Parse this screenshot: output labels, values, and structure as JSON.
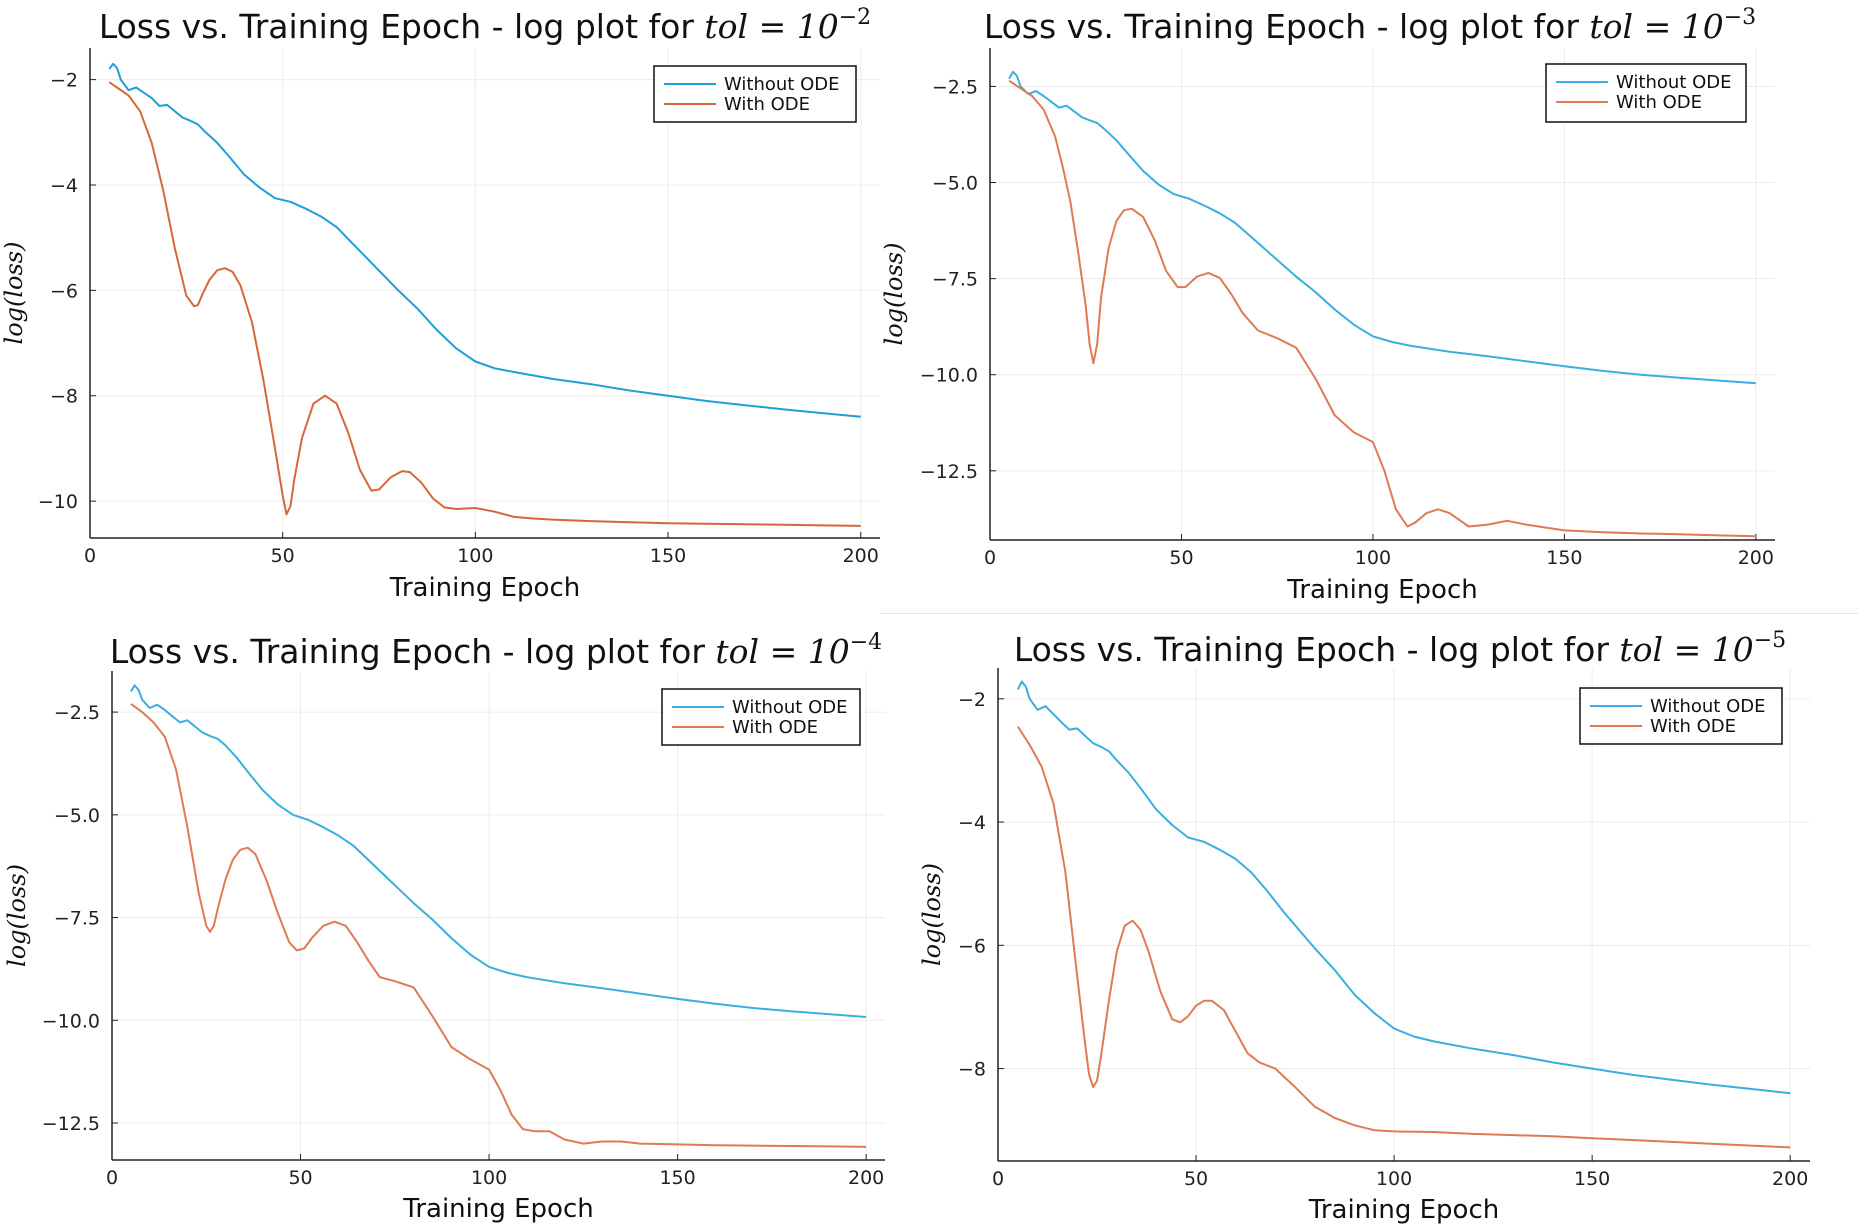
{
  "colors": {
    "without_ode": "#1f9fd8",
    "with_ode": "#d5683a",
    "grid": "#ececec",
    "axis": "#222222"
  },
  "chart_data": [
    {
      "type": "line",
      "title_prefix": "Loss vs. Training Epoch - log plot for ",
      "title_math": "tol = 10",
      "title_exponent": "−2",
      "xlabel": "Training Epoch",
      "ylabel": "log(loss)",
      "xlim": [
        0,
        205
      ],
      "ylim": [
        -10.7,
        -1.4
      ],
      "xticks": [
        0,
        50,
        100,
        150,
        200
      ],
      "xtick_labels": [
        "0",
        "50",
        "100",
        "150",
        "200"
      ],
      "yticks": [
        -2,
        -4,
        -6,
        -8,
        -10
      ],
      "ytick_labels": [
        "−2",
        "−4",
        "−6",
        "−8",
        "−10"
      ],
      "grid": true,
      "legend_position": "top-right",
      "series": [
        {
          "name": "Without ODE",
          "color": "#1f9fd8",
          "x": [
            5,
            6,
            7,
            8,
            10,
            12,
            14,
            16,
            18,
            20,
            22,
            24,
            26,
            28,
            30,
            33,
            36,
            40,
            44,
            48,
            52,
            56,
            60,
            64,
            68,
            72,
            76,
            80,
            85,
            90,
            95,
            100,
            105,
            110,
            120,
            130,
            140,
            150,
            160,
            170,
            180,
            190,
            200
          ],
          "y": [
            -1.8,
            -1.7,
            -1.78,
            -2.0,
            -2.2,
            -2.15,
            -2.25,
            -2.35,
            -2.5,
            -2.48,
            -2.6,
            -2.72,
            -2.78,
            -2.85,
            -3.0,
            -3.2,
            -3.45,
            -3.8,
            -4.05,
            -4.25,
            -4.32,
            -4.45,
            -4.6,
            -4.8,
            -5.1,
            -5.4,
            -5.7,
            -6.0,
            -6.35,
            -6.75,
            -7.1,
            -7.35,
            -7.48,
            -7.55,
            -7.68,
            -7.78,
            -7.9,
            -8.0,
            -8.1,
            -8.18,
            -8.26,
            -8.33,
            -8.4
          ]
        },
        {
          "name": "With ODE",
          "color": "#d5683a",
          "x": [
            5,
            7,
            10,
            13,
            16,
            19,
            22,
            25,
            27,
            28,
            29,
            31,
            33,
            35,
            37,
            39,
            42,
            45,
            48,
            50,
            51,
            52,
            53,
            55,
            58,
            61,
            64,
            67,
            70,
            73,
            75,
            78,
            81,
            83,
            86,
            89,
            92,
            95,
            100,
            105,
            110,
            115,
            120,
            130,
            140,
            150,
            160,
            170,
            180,
            190,
            200
          ],
          "y": [
            -2.05,
            -2.15,
            -2.3,
            -2.6,
            -3.2,
            -4.1,
            -5.2,
            -6.1,
            -6.3,
            -6.28,
            -6.1,
            -5.8,
            -5.62,
            -5.58,
            -5.65,
            -5.9,
            -6.6,
            -7.7,
            -9.0,
            -9.9,
            -10.25,
            -10.1,
            -9.6,
            -8.8,
            -8.15,
            -8.0,
            -8.15,
            -8.7,
            -9.4,
            -9.8,
            -9.78,
            -9.55,
            -9.43,
            -9.45,
            -9.65,
            -9.95,
            -10.12,
            -10.15,
            -10.13,
            -10.2,
            -10.3,
            -10.33,
            -10.35,
            -10.38,
            -10.4,
            -10.42,
            -10.43,
            -10.44,
            -10.45,
            -10.46,
            -10.47
          ]
        }
      ]
    },
    {
      "type": "line",
      "title_prefix": "Loss vs. Training Epoch - log plot for ",
      "title_math": "tol = 10",
      "title_exponent": "−3",
      "xlabel": "Training Epoch",
      "ylabel": "log(loss)",
      "xlim": [
        0,
        205
      ],
      "ylim": [
        -14.3,
        -1.5
      ],
      "xticks": [
        0,
        50,
        100,
        150,
        200
      ],
      "xtick_labels": [
        "0",
        "50",
        "100",
        "150",
        "200"
      ],
      "yticks": [
        -2.5,
        -5.0,
        -7.5,
        -10.0,
        -12.5
      ],
      "ytick_labels": [
        "−2.5",
        "−5.0",
        "−7.5",
        "−10.0",
        "−12.5"
      ],
      "grid": true,
      "legend_position": "top-right",
      "series": [
        {
          "name": "Without ODE",
          "color": "#3aaee0",
          "x": [
            5,
            6,
            7,
            8,
            10,
            12,
            14,
            16,
            18,
            20,
            22,
            24,
            26,
            28,
            30,
            33,
            36,
            40,
            44,
            48,
            52,
            56,
            60,
            64,
            68,
            72,
            76,
            80,
            85,
            90,
            95,
            100,
            105,
            110,
            120,
            130,
            140,
            150,
            160,
            170,
            180,
            190,
            200
          ],
          "y": [
            -2.3,
            -2.12,
            -2.22,
            -2.5,
            -2.7,
            -2.62,
            -2.75,
            -2.9,
            -3.05,
            -3.0,
            -3.15,
            -3.3,
            -3.38,
            -3.45,
            -3.62,
            -3.9,
            -4.25,
            -4.7,
            -5.05,
            -5.3,
            -5.42,
            -5.6,
            -5.8,
            -6.05,
            -6.4,
            -6.75,
            -7.1,
            -7.45,
            -7.85,
            -8.3,
            -8.7,
            -9.0,
            -9.15,
            -9.25,
            -9.4,
            -9.52,
            -9.65,
            -9.78,
            -9.9,
            -10.0,
            -10.08,
            -10.15,
            -10.22
          ]
        },
        {
          "name": "With ODE",
          "color": "#e07a55",
          "x": [
            5,
            8,
            11,
            14,
            17,
            19,
            21,
            23,
            25,
            26,
            27,
            28,
            29,
            31,
            33,
            35,
            37,
            40,
            43,
            46,
            49,
            51,
            54,
            57,
            60,
            63,
            66,
            70,
            75,
            80,
            85,
            90,
            95,
            100,
            103,
            106,
            109,
            111,
            114,
            117,
            120,
            125,
            130,
            135,
            140,
            150,
            160,
            170,
            180,
            190,
            200
          ],
          "y": [
            -2.35,
            -2.55,
            -2.75,
            -3.1,
            -3.8,
            -4.6,
            -5.5,
            -6.8,
            -8.2,
            -9.2,
            -9.7,
            -9.2,
            -8.0,
            -6.7,
            -6.0,
            -5.72,
            -5.68,
            -5.9,
            -6.5,
            -7.3,
            -7.72,
            -7.72,
            -7.45,
            -7.35,
            -7.48,
            -7.9,
            -8.4,
            -8.85,
            -9.05,
            -9.3,
            -10.1,
            -11.05,
            -11.5,
            -11.75,
            -12.5,
            -13.5,
            -13.95,
            -13.85,
            -13.6,
            -13.5,
            -13.6,
            -13.95,
            -13.9,
            -13.8,
            -13.9,
            -14.05,
            -14.1,
            -14.13,
            -14.15,
            -14.18,
            -14.2
          ]
        }
      ]
    },
    {
      "type": "line",
      "title_prefix": "Loss vs. Training Epoch - log plot for ",
      "title_math": "tol = 10",
      "title_exponent": "−4",
      "xlabel": "Training Epoch",
      "ylabel": "log(loss)",
      "xlim": [
        0,
        205
      ],
      "ylim": [
        -13.4,
        -1.5
      ],
      "xticks": [
        0,
        50,
        100,
        150,
        200
      ],
      "xtick_labels": [
        "0",
        "50",
        "100",
        "150",
        "200"
      ],
      "yticks": [
        -2.5,
        -5.0,
        -7.5,
        -10.0,
        -12.5
      ],
      "ytick_labels": [
        "−2.5",
        "−5.0",
        "−7.5",
        "−10.0",
        "−12.5"
      ],
      "grid": true,
      "legend_position": "top-right",
      "series": [
        {
          "name": "Without ODE",
          "color": "#3aaee0",
          "x": [
            5,
            6,
            7,
            8,
            10,
            12,
            14,
            16,
            18,
            20,
            22,
            24,
            26,
            28,
            30,
            33,
            36,
            40,
            44,
            48,
            52,
            56,
            60,
            64,
            68,
            72,
            76,
            80,
            85,
            90,
            95,
            100,
            105,
            110,
            120,
            130,
            140,
            150,
            160,
            170,
            180,
            190,
            200
          ],
          "y": [
            -2.0,
            -1.85,
            -1.95,
            -2.2,
            -2.4,
            -2.32,
            -2.45,
            -2.6,
            -2.75,
            -2.7,
            -2.85,
            -3.0,
            -3.08,
            -3.15,
            -3.3,
            -3.6,
            -3.95,
            -4.4,
            -4.75,
            -5.0,
            -5.12,
            -5.3,
            -5.5,
            -5.75,
            -6.1,
            -6.45,
            -6.8,
            -7.15,
            -7.55,
            -8.0,
            -8.4,
            -8.7,
            -8.85,
            -8.95,
            -9.1,
            -9.22,
            -9.35,
            -9.48,
            -9.6,
            -9.7,
            -9.78,
            -9.85,
            -9.92
          ]
        },
        {
          "name": "With ODE",
          "color": "#e07a55",
          "x": [
            5,
            8,
            11,
            14,
            17,
            20,
            23,
            25,
            26,
            27,
            28,
            30,
            32,
            34,
            36,
            38,
            41,
            44,
            47,
            49,
            51,
            53,
            56,
            59,
            62,
            65,
            68,
            71,
            75,
            80,
            85,
            90,
            95,
            100,
            103,
            106,
            109,
            112,
            116,
            120,
            125,
            130,
            135,
            140,
            150,
            160,
            170,
            180,
            190,
            200
          ],
          "y": [
            -2.3,
            -2.5,
            -2.75,
            -3.1,
            -3.9,
            -5.3,
            -6.9,
            -7.7,
            -7.85,
            -7.7,
            -7.3,
            -6.6,
            -6.1,
            -5.85,
            -5.8,
            -5.95,
            -6.6,
            -7.4,
            -8.1,
            -8.3,
            -8.25,
            -8.0,
            -7.7,
            -7.6,
            -7.7,
            -8.1,
            -8.55,
            -8.95,
            -9.05,
            -9.2,
            -9.9,
            -10.65,
            -10.95,
            -11.2,
            -11.7,
            -12.3,
            -12.65,
            -12.7,
            -12.7,
            -12.9,
            -13.0,
            -12.95,
            -12.95,
            -13.0,
            -13.02,
            -13.04,
            -13.05,
            -13.06,
            -13.07,
            -13.08
          ]
        }
      ]
    },
    {
      "type": "line",
      "title_prefix": "Loss vs. Training Epoch - log plot for ",
      "title_math": "tol = 10",
      "title_exponent": "−5",
      "xlabel": "Training Epoch",
      "ylabel": "log(loss)",
      "xlim": [
        0,
        205
      ],
      "ylim": [
        -9.5,
        -1.5
      ],
      "xticks": [
        0,
        50,
        100,
        150,
        200
      ],
      "xtick_labels": [
        "0",
        "50",
        "100",
        "150",
        "200"
      ],
      "yticks": [
        -2,
        -4,
        -6,
        -8
      ],
      "ytick_labels": [
        "−2",
        "−4",
        "−6",
        "−8"
      ],
      "grid": true,
      "legend_position": "top-right",
      "series": [
        {
          "name": "Without ODE",
          "color": "#3aaee0",
          "x": [
            5,
            6,
            7,
            8,
            10,
            12,
            14,
            16,
            18,
            20,
            22,
            24,
            26,
            28,
            30,
            33,
            36,
            40,
            44,
            48,
            52,
            56,
            60,
            64,
            68,
            72,
            76,
            80,
            85,
            90,
            95,
            100,
            105,
            110,
            120,
            130,
            140,
            150,
            160,
            170,
            180,
            190,
            200
          ],
          "y": [
            -1.85,
            -1.72,
            -1.8,
            -2.0,
            -2.18,
            -2.12,
            -2.25,
            -2.38,
            -2.5,
            -2.48,
            -2.6,
            -2.72,
            -2.78,
            -2.85,
            -3.0,
            -3.2,
            -3.45,
            -3.8,
            -4.05,
            -4.25,
            -4.32,
            -4.45,
            -4.6,
            -4.82,
            -5.12,
            -5.45,
            -5.75,
            -6.05,
            -6.4,
            -6.8,
            -7.1,
            -7.35,
            -7.48,
            -7.56,
            -7.68,
            -7.78,
            -7.9,
            -8.0,
            -8.1,
            -8.18,
            -8.26,
            -8.33,
            -8.4
          ]
        },
        {
          "name": "With ODE",
          "color": "#e07a55",
          "x": [
            5,
            8,
            11,
            14,
            17,
            20,
            22,
            23,
            24,
            25,
            26,
            28,
            30,
            32,
            34,
            36,
            38,
            41,
            44,
            46,
            48,
            50,
            52,
            54,
            57,
            60,
            63,
            66,
            70,
            75,
            80,
            85,
            90,
            95,
            100,
            110,
            120,
            130,
            140,
            150,
            160,
            170,
            180,
            190,
            200
          ],
          "y": [
            -2.45,
            -2.75,
            -3.1,
            -3.7,
            -4.8,
            -6.5,
            -7.6,
            -8.1,
            -8.3,
            -8.2,
            -7.8,
            -6.9,
            -6.1,
            -5.68,
            -5.6,
            -5.75,
            -6.1,
            -6.75,
            -7.2,
            -7.25,
            -7.15,
            -6.98,
            -6.9,
            -6.9,
            -7.05,
            -7.4,
            -7.75,
            -7.9,
            -8.0,
            -8.3,
            -8.62,
            -8.8,
            -8.92,
            -9.0,
            -9.02,
            -9.03,
            -9.06,
            -9.08,
            -9.1,
            -9.13,
            -9.16,
            -9.19,
            -9.22,
            -9.25,
            -9.28
          ]
        }
      ]
    }
  ]
}
